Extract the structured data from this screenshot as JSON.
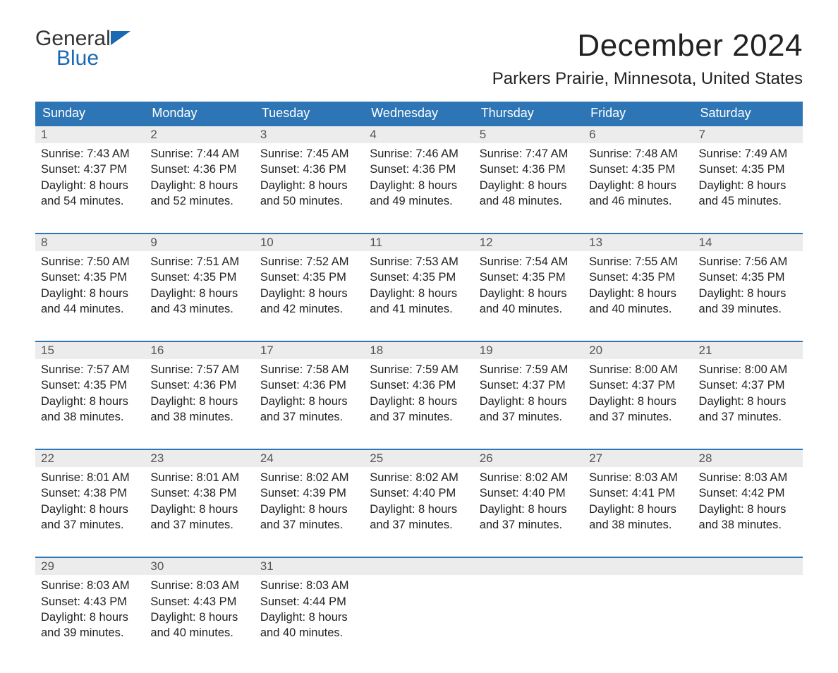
{
  "brand": {
    "word1": "General",
    "word2": "Blue",
    "flag_color": "#1969b3"
  },
  "title": "December 2024",
  "location": "Parkers Prairie, Minnesota, United States",
  "colors": {
    "header_bg": "#2e75b5",
    "header_text": "#ffffff",
    "daynum_bg": "#ececec",
    "rule": "#2e75b5",
    "body_text": "#222222"
  },
  "columns": [
    "Sunday",
    "Monday",
    "Tuesday",
    "Wednesday",
    "Thursday",
    "Friday",
    "Saturday"
  ],
  "weeks": [
    [
      {
        "n": "1",
        "sr": "Sunrise: 7:43 AM",
        "ss": "Sunset: 4:37 PM",
        "d1": "Daylight: 8 hours",
        "d2": "and 54 minutes."
      },
      {
        "n": "2",
        "sr": "Sunrise: 7:44 AM",
        "ss": "Sunset: 4:36 PM",
        "d1": "Daylight: 8 hours",
        "d2": "and 52 minutes."
      },
      {
        "n": "3",
        "sr": "Sunrise: 7:45 AM",
        "ss": "Sunset: 4:36 PM",
        "d1": "Daylight: 8 hours",
        "d2": "and 50 minutes."
      },
      {
        "n": "4",
        "sr": "Sunrise: 7:46 AM",
        "ss": "Sunset: 4:36 PM",
        "d1": "Daylight: 8 hours",
        "d2": "and 49 minutes."
      },
      {
        "n": "5",
        "sr": "Sunrise: 7:47 AM",
        "ss": "Sunset: 4:36 PM",
        "d1": "Daylight: 8 hours",
        "d2": "and 48 minutes."
      },
      {
        "n": "6",
        "sr": "Sunrise: 7:48 AM",
        "ss": "Sunset: 4:35 PM",
        "d1": "Daylight: 8 hours",
        "d2": "and 46 minutes."
      },
      {
        "n": "7",
        "sr": "Sunrise: 7:49 AM",
        "ss": "Sunset: 4:35 PM",
        "d1": "Daylight: 8 hours",
        "d2": "and 45 minutes."
      }
    ],
    [
      {
        "n": "8",
        "sr": "Sunrise: 7:50 AM",
        "ss": "Sunset: 4:35 PM",
        "d1": "Daylight: 8 hours",
        "d2": "and 44 minutes."
      },
      {
        "n": "9",
        "sr": "Sunrise: 7:51 AM",
        "ss": "Sunset: 4:35 PM",
        "d1": "Daylight: 8 hours",
        "d2": "and 43 minutes."
      },
      {
        "n": "10",
        "sr": "Sunrise: 7:52 AM",
        "ss": "Sunset: 4:35 PM",
        "d1": "Daylight: 8 hours",
        "d2": "and 42 minutes."
      },
      {
        "n": "11",
        "sr": "Sunrise: 7:53 AM",
        "ss": "Sunset: 4:35 PM",
        "d1": "Daylight: 8 hours",
        "d2": "and 41 minutes."
      },
      {
        "n": "12",
        "sr": "Sunrise: 7:54 AM",
        "ss": "Sunset: 4:35 PM",
        "d1": "Daylight: 8 hours",
        "d2": "and 40 minutes."
      },
      {
        "n": "13",
        "sr": "Sunrise: 7:55 AM",
        "ss": "Sunset: 4:35 PM",
        "d1": "Daylight: 8 hours",
        "d2": "and 40 minutes."
      },
      {
        "n": "14",
        "sr": "Sunrise: 7:56 AM",
        "ss": "Sunset: 4:35 PM",
        "d1": "Daylight: 8 hours",
        "d2": "and 39 minutes."
      }
    ],
    [
      {
        "n": "15",
        "sr": "Sunrise: 7:57 AM",
        "ss": "Sunset: 4:35 PM",
        "d1": "Daylight: 8 hours",
        "d2": "and 38 minutes."
      },
      {
        "n": "16",
        "sr": "Sunrise: 7:57 AM",
        "ss": "Sunset: 4:36 PM",
        "d1": "Daylight: 8 hours",
        "d2": "and 38 minutes."
      },
      {
        "n": "17",
        "sr": "Sunrise: 7:58 AM",
        "ss": "Sunset: 4:36 PM",
        "d1": "Daylight: 8 hours",
        "d2": "and 37 minutes."
      },
      {
        "n": "18",
        "sr": "Sunrise: 7:59 AM",
        "ss": "Sunset: 4:36 PM",
        "d1": "Daylight: 8 hours",
        "d2": "and 37 minutes."
      },
      {
        "n": "19",
        "sr": "Sunrise: 7:59 AM",
        "ss": "Sunset: 4:37 PM",
        "d1": "Daylight: 8 hours",
        "d2": "and 37 minutes."
      },
      {
        "n": "20",
        "sr": "Sunrise: 8:00 AM",
        "ss": "Sunset: 4:37 PM",
        "d1": "Daylight: 8 hours",
        "d2": "and 37 minutes."
      },
      {
        "n": "21",
        "sr": "Sunrise: 8:00 AM",
        "ss": "Sunset: 4:37 PM",
        "d1": "Daylight: 8 hours",
        "d2": "and 37 minutes."
      }
    ],
    [
      {
        "n": "22",
        "sr": "Sunrise: 8:01 AM",
        "ss": "Sunset: 4:38 PM",
        "d1": "Daylight: 8 hours",
        "d2": "and 37 minutes."
      },
      {
        "n": "23",
        "sr": "Sunrise: 8:01 AM",
        "ss": "Sunset: 4:38 PM",
        "d1": "Daylight: 8 hours",
        "d2": "and 37 minutes."
      },
      {
        "n": "24",
        "sr": "Sunrise: 8:02 AM",
        "ss": "Sunset: 4:39 PM",
        "d1": "Daylight: 8 hours",
        "d2": "and 37 minutes."
      },
      {
        "n": "25",
        "sr": "Sunrise: 8:02 AM",
        "ss": "Sunset: 4:40 PM",
        "d1": "Daylight: 8 hours",
        "d2": "and 37 minutes."
      },
      {
        "n": "26",
        "sr": "Sunrise: 8:02 AM",
        "ss": "Sunset: 4:40 PM",
        "d1": "Daylight: 8 hours",
        "d2": "and 37 minutes."
      },
      {
        "n": "27",
        "sr": "Sunrise: 8:03 AM",
        "ss": "Sunset: 4:41 PM",
        "d1": "Daylight: 8 hours",
        "d2": "and 38 minutes."
      },
      {
        "n": "28",
        "sr": "Sunrise: 8:03 AM",
        "ss": "Sunset: 4:42 PM",
        "d1": "Daylight: 8 hours",
        "d2": "and 38 minutes."
      }
    ],
    [
      {
        "n": "29",
        "sr": "Sunrise: 8:03 AM",
        "ss": "Sunset: 4:43 PM",
        "d1": "Daylight: 8 hours",
        "d2": "and 39 minutes."
      },
      {
        "n": "30",
        "sr": "Sunrise: 8:03 AM",
        "ss": "Sunset: 4:43 PM",
        "d1": "Daylight: 8 hours",
        "d2": "and 40 minutes."
      },
      {
        "n": "31",
        "sr": "Sunrise: 8:03 AM",
        "ss": "Sunset: 4:44 PM",
        "d1": "Daylight: 8 hours",
        "d2": "and 40 minutes."
      },
      null,
      null,
      null,
      null
    ]
  ]
}
